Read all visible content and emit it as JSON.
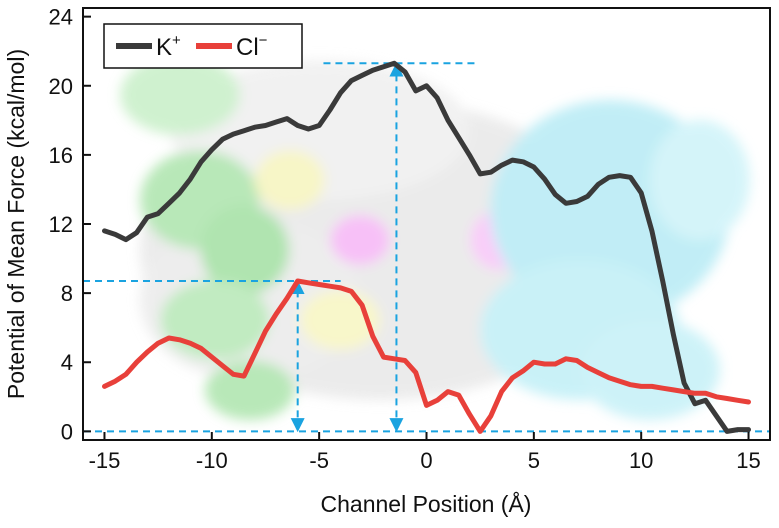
{
  "colors": {
    "k_line": "#3a3a3a",
    "cl_line": "#e8403a",
    "annotation": "#1aa3e0",
    "axis": "#111111"
  },
  "chart_data": {
    "type": "line",
    "title": "",
    "xlabel": "Channel Position (Å)",
    "ylabel": "Potential of Mean Force (kcal/mol)",
    "xlim": [
      -16,
      16
    ],
    "ylim": [
      -0.5,
      24.5
    ],
    "xticks": [
      -15,
      -10,
      -5,
      0,
      5,
      10,
      15
    ],
    "yticks": [
      0,
      4,
      8,
      12,
      16,
      20,
      24
    ],
    "xtick_labels": [
      "-15",
      "-10",
      "-5",
      "0",
      "5",
      "10",
      "15"
    ],
    "ytick_labels": [
      "0",
      "4",
      "8",
      "12",
      "16",
      "20",
      "24"
    ],
    "legend": {
      "placement": "top-left",
      "entries": [
        {
          "name": "K",
          "superscript": "+"
        },
        {
          "name": "Cl",
          "superscript": "−"
        }
      ]
    },
    "series": [
      {
        "name": "K+",
        "color": "#3a3a3a",
        "x": [
          -15.0,
          -14.5,
          -14.0,
          -13.5,
          -13.0,
          -12.5,
          -12.0,
          -11.5,
          -11.0,
          -10.5,
          -10.0,
          -9.5,
          -9.0,
          -8.5,
          -8.0,
          -7.5,
          -7.0,
          -6.5,
          -6.0,
          -5.5,
          -5.0,
          -4.5,
          -4.0,
          -3.5,
          -3.0,
          -2.5,
          -2.0,
          -1.5,
          -1.0,
          -0.5,
          0.0,
          0.5,
          1.0,
          1.5,
          2.0,
          2.5,
          3.0,
          3.5,
          4.0,
          4.5,
          5.0,
          5.5,
          6.0,
          6.5,
          7.0,
          7.5,
          8.0,
          8.5,
          9.0,
          9.5,
          10.0,
          10.5,
          11.0,
          11.5,
          12.0,
          12.5,
          13.0,
          13.5,
          14.0,
          14.5,
          15.0
        ],
        "values": [
          11.6,
          11.4,
          11.1,
          11.5,
          12.4,
          12.6,
          13.2,
          13.8,
          14.6,
          15.6,
          16.3,
          16.9,
          17.2,
          17.4,
          17.6,
          17.7,
          17.9,
          18.1,
          17.7,
          17.5,
          17.7,
          18.6,
          19.6,
          20.3,
          20.6,
          20.9,
          21.1,
          21.3,
          20.8,
          19.7,
          20.0,
          19.3,
          18.0,
          17.0,
          16.0,
          14.9,
          15.0,
          15.4,
          15.7,
          15.6,
          15.3,
          14.6,
          13.7,
          13.2,
          13.3,
          13.6,
          14.3,
          14.7,
          14.8,
          14.7,
          13.8,
          11.6,
          8.7,
          5.6,
          2.8,
          1.6,
          1.8,
          0.9,
          0.0,
          0.1,
          0.1
        ]
      },
      {
        "name": "Cl-",
        "color": "#e8403a",
        "x": [
          -15.0,
          -14.5,
          -14.0,
          -13.5,
          -13.0,
          -12.5,
          -12.0,
          -11.5,
          -11.0,
          -10.5,
          -10.0,
          -9.5,
          -9.0,
          -8.5,
          -8.0,
          -7.5,
          -7.0,
          -6.5,
          -6.0,
          -5.5,
          -5.0,
          -4.5,
          -4.0,
          -3.5,
          -3.0,
          -2.5,
          -2.0,
          -1.5,
          -1.0,
          -0.5,
          0.0,
          0.5,
          1.0,
          1.5,
          2.0,
          2.5,
          3.0,
          3.5,
          4.0,
          4.5,
          5.0,
          5.5,
          6.0,
          6.5,
          7.0,
          7.5,
          8.0,
          8.5,
          9.0,
          9.5,
          10.0,
          10.5,
          11.0,
          11.5,
          12.0,
          12.5,
          13.0,
          13.5,
          14.0,
          14.5,
          15.0
        ],
        "values": [
          2.6,
          2.9,
          3.3,
          4.0,
          4.6,
          5.1,
          5.4,
          5.3,
          5.1,
          4.8,
          4.3,
          3.8,
          3.3,
          3.2,
          4.5,
          5.8,
          6.8,
          7.7,
          8.7,
          8.6,
          8.5,
          8.4,
          8.3,
          8.1,
          7.3,
          5.5,
          4.3,
          4.2,
          4.1,
          3.4,
          1.5,
          1.8,
          2.3,
          2.1,
          1.0,
          0.0,
          0.9,
          2.3,
          3.1,
          3.5,
          4.0,
          3.9,
          3.9,
          4.2,
          4.1,
          3.7,
          3.4,
          3.1,
          2.9,
          2.7,
          2.6,
          2.6,
          2.5,
          2.4,
          2.3,
          2.2,
          2.2,
          2.0,
          1.9,
          1.8,
          1.7
        ]
      }
    ],
    "annotations": [
      {
        "type": "hline",
        "y": 21.3,
        "x_from": -4.8,
        "x_to": 2.4
      },
      {
        "type": "hline",
        "y": 8.7,
        "x_from": -16.0,
        "x_to": -4.0
      },
      {
        "type": "hline",
        "y": 0.0,
        "x_from": -16.0,
        "x_to": 16.0
      },
      {
        "type": "double-arrow",
        "x": -1.4,
        "y_from": 0.0,
        "y_to": 21.3
      },
      {
        "type": "double-arrow",
        "x": -6.0,
        "y_from": 0.0,
        "y_to": 8.7
      }
    ]
  }
}
